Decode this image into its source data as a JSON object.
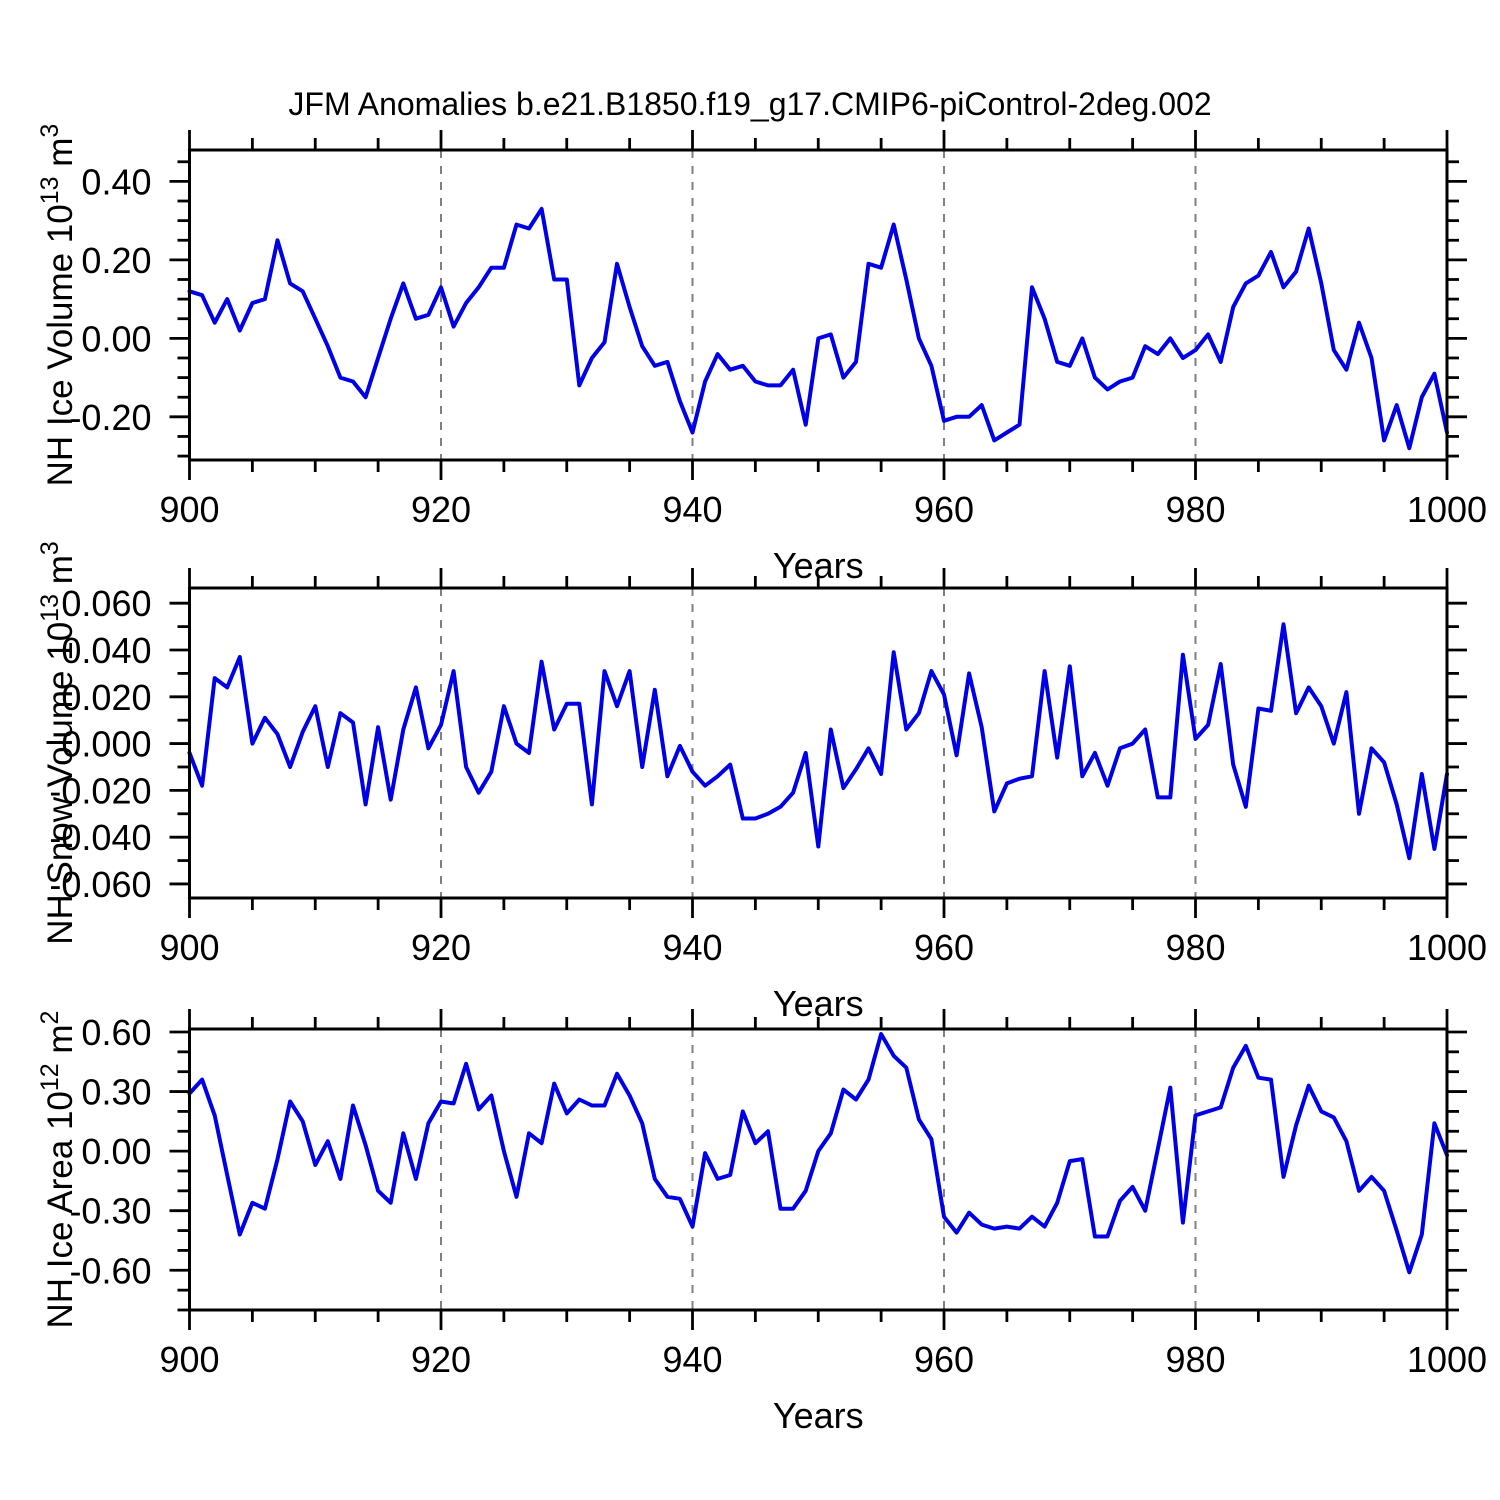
{
  "title": "JFM Anomalies b.e21.B1850.f19_g17.CMIP6-piControl-2deg.002",
  "line_color": "#0000e6",
  "grid_color": "#808080",
  "frame_color": "#000000",
  "chart_data": [
    {
      "type": "line",
      "name": "nh-ice-volume",
      "ylabel": "NH Ice Volume 10¹³ m³",
      "xlabel": "Years",
      "x": {
        "start": 900,
        "end": 1000,
        "step": 1
      },
      "xticks": [
        900,
        920,
        940,
        960,
        980,
        1000
      ],
      "x_minor_step": 5,
      "grid_x": [
        920,
        940,
        960,
        980
      ],
      "ylim": [
        -0.31,
        0.48
      ],
      "yticks": [
        0.4,
        0.2,
        0.0,
        -0.2
      ],
      "ytick_labels": [
        "0.40",
        "0.20",
        "0.00",
        "-0.20"
      ],
      "y_minor_step": 0.05,
      "values": [
        0.12,
        0.11,
        0.04,
        0.1,
        0.02,
        0.09,
        0.1,
        0.25,
        0.14,
        0.12,
        0.05,
        -0.02,
        -0.1,
        -0.11,
        -0.15,
        -0.05,
        0.05,
        0.14,
        0.05,
        0.06,
        0.13,
        0.03,
        0.09,
        0.13,
        0.18,
        0.18,
        0.29,
        0.28,
        0.33,
        0.15,
        0.15,
        -0.12,
        -0.05,
        -0.01,
        0.19,
        0.08,
        -0.02,
        -0.07,
        -0.06,
        -0.16,
        -0.24,
        -0.11,
        -0.04,
        -0.08,
        -0.07,
        -0.11,
        -0.12,
        -0.12,
        -0.08,
        -0.22,
        0.0,
        0.01,
        -0.1,
        -0.06,
        0.19,
        0.18,
        0.29,
        0.15,
        0.0,
        -0.07,
        -0.21,
        -0.2,
        -0.2,
        -0.17,
        -0.26,
        -0.24,
        -0.22,
        0.13,
        0.05,
        -0.06,
        -0.07,
        0.0,
        -0.1,
        -0.13,
        -0.11,
        -0.1,
        -0.02,
        -0.04,
        0.0,
        -0.05,
        -0.03,
        0.01,
        -0.06,
        0.08,
        0.14,
        0.16,
        0.22,
        0.13,
        0.17,
        0.28,
        0.14,
        -0.03,
        -0.08,
        0.04,
        -0.05,
        -0.26,
        -0.17,
        -0.28,
        -0.15,
        -0.09,
        -0.24
      ]
    },
    {
      "type": "line",
      "name": "nh-snow-volume",
      "ylabel": "NH Snow Volume 10¹³ m³",
      "xlabel": "Years",
      "x": {
        "start": 900,
        "end": 1000,
        "step": 1
      },
      "xticks": [
        900,
        920,
        940,
        960,
        980,
        1000
      ],
      "x_minor_step": 5,
      "grid_x": [
        920,
        940,
        960,
        980
      ],
      "ylim": [
        -0.066,
        0.0665
      ],
      "yticks": [
        0.06,
        0.04,
        0.02,
        0.0,
        -0.02,
        -0.04,
        -0.06
      ],
      "ytick_labels": [
        "0.060",
        "0.040",
        "0.020",
        "0.000",
        "-0.020",
        "-0.040",
        "-0.060"
      ],
      "y_minor_step": 0.01,
      "values": [
        -0.004,
        -0.018,
        0.028,
        0.024,
        0.037,
        0.0,
        0.011,
        0.004,
        -0.01,
        0.005,
        0.016,
        -0.01,
        0.013,
        0.009,
        -0.026,
        0.007,
        -0.024,
        0.006,
        0.024,
        -0.002,
        0.008,
        0.031,
        -0.01,
        -0.021,
        -0.012,
        0.016,
        0.0,
        -0.004,
        0.035,
        0.006,
        0.017,
        0.017,
        -0.026,
        0.031,
        0.016,
        0.031,
        -0.01,
        0.023,
        -0.014,
        -0.001,
        -0.012,
        -0.018,
        -0.014,
        -0.009,
        -0.032,
        -0.032,
        -0.03,
        -0.027,
        -0.021,
        -0.004,
        -0.044,
        0.006,
        -0.019,
        -0.011,
        -0.002,
        -0.013,
        0.039,
        0.006,
        0.013,
        0.031,
        0.021,
        -0.005,
        0.03,
        0.007,
        -0.029,
        -0.017,
        -0.015,
        -0.014,
        0.031,
        -0.006,
        0.033,
        -0.014,
        -0.004,
        -0.018,
        -0.002,
        0.0,
        0.006,
        -0.023,
        -0.023,
        0.038,
        0.002,
        0.008,
        0.034,
        -0.009,
        -0.027,
        0.015,
        0.014,
        0.051,
        0.013,
        0.024,
        0.016,
        0.0,
        0.022,
        -0.03,
        -0.002,
        -0.008,
        -0.026,
        -0.049,
        -0.013,
        -0.045,
        -0.013
      ]
    },
    {
      "type": "line",
      "name": "nh-ice-area",
      "ylabel": "NH Ice Area 10¹² m²",
      "xlabel": "Years",
      "x": {
        "start": 900,
        "end": 1000,
        "step": 1
      },
      "xticks": [
        900,
        920,
        940,
        960,
        980,
        1000
      ],
      "x_minor_step": 5,
      "grid_x": [
        920,
        940,
        960,
        980
      ],
      "ylim": [
        -0.8,
        0.615
      ],
      "yticks": [
        0.6,
        0.3,
        0.0,
        -0.3,
        -0.6
      ],
      "ytick_labels": [
        "0.60",
        "0.30",
        "0.00",
        "-0.30",
        "-0.60"
      ],
      "y_minor_step": 0.1,
      "values": [
        0.29,
        0.36,
        0.18,
        -0.12,
        -0.42,
        -0.26,
        -0.29,
        -0.04,
        0.25,
        0.15,
        -0.07,
        0.05,
        -0.14,
        0.23,
        0.03,
        -0.2,
        -0.26,
        0.09,
        -0.14,
        0.14,
        0.25,
        0.24,
        0.44,
        0.21,
        0.28,
        0.0,
        -0.23,
        0.09,
        0.04,
        0.34,
        0.19,
        0.26,
        0.23,
        0.23,
        0.39,
        0.28,
        0.14,
        -0.14,
        -0.23,
        -0.24,
        -0.38,
        -0.01,
        -0.14,
        -0.12,
        0.2,
        0.04,
        0.1,
        -0.29,
        -0.29,
        -0.2,
        0.0,
        0.09,
        0.31,
        0.26,
        0.36,
        0.59,
        0.48,
        0.42,
        0.16,
        0.06,
        -0.33,
        -0.41,
        -0.31,
        -0.37,
        -0.39,
        -0.38,
        -0.39,
        -0.33,
        -0.38,
        -0.26,
        -0.05,
        -0.04,
        -0.43,
        -0.43,
        -0.25,
        -0.18,
        -0.3,
        0.01,
        0.32,
        -0.36,
        0.18,
        0.2,
        0.22,
        0.42,
        0.53,
        0.37,
        0.36,
        -0.13,
        0.13,
        0.33,
        0.2,
        0.17,
        0.05,
        -0.2,
        -0.13,
        -0.2,
        -0.4,
        -0.61,
        -0.42,
        0.14,
        -0.02
      ]
    }
  ]
}
